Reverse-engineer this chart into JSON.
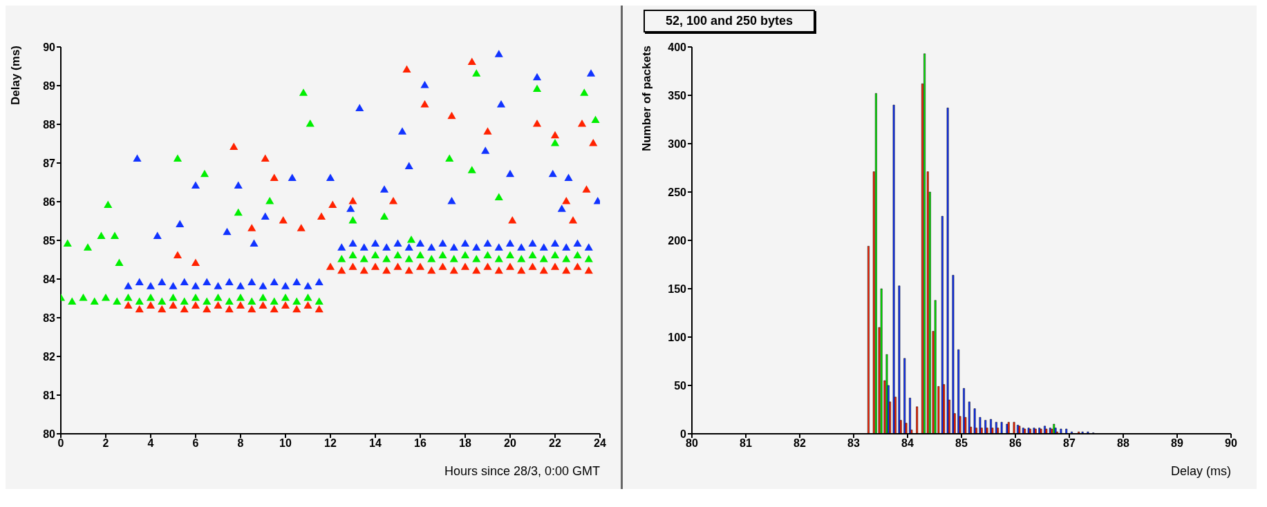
{
  "chart_data": [
    {
      "type": "scatter",
      "xlabel": "Hours since 28/3, 0:00 GMT",
      "ylabel": "Delay (ms)",
      "xlim": [
        0,
        24
      ],
      "ylim": [
        80,
        90
      ],
      "xticks": [
        0,
        2,
        4,
        6,
        8,
        10,
        12,
        14,
        16,
        18,
        20,
        22,
        24
      ],
      "yticks": [
        80,
        81,
        82,
        83,
        84,
        85,
        86,
        87,
        88,
        89,
        90
      ],
      "marker": "triangle",
      "series": [
        {
          "color": "#ff2200",
          "x": [
            3.0,
            3.5,
            4.0,
            4.5,
            5.0,
            5.5,
            6.0,
            6.5,
            7.0,
            7.5,
            8.0,
            8.5,
            9.0,
            9.5,
            10.0,
            10.5,
            11.0,
            11.5,
            12.0,
            12.5,
            13.0,
            13.5,
            14.0,
            14.5,
            15.0,
            15.5,
            16.0,
            16.5,
            17.0,
            17.5,
            18.0,
            18.5,
            19.0,
            19.5,
            20.0,
            20.5,
            21.0,
            21.5,
            22.0,
            22.5,
            23.0,
            23.5,
            7.7,
            9.1,
            9.5,
            9.9,
            10.7,
            11.6,
            12.1,
            15.4,
            18.3,
            16.2,
            17.4,
            19.0,
            21.2,
            22.0,
            23.2,
            23.7,
            13.0,
            14.8,
            20.1,
            22.5,
            23.4,
            22.8,
            6.0,
            8.5,
            5.2
          ],
          "values": [
            83.3,
            83.2,
            83.3,
            83.2,
            83.3,
            83.2,
            83.3,
            83.2,
            83.3,
            83.2,
            83.3,
            83.2,
            83.3,
            83.2,
            83.3,
            83.2,
            83.3,
            83.2,
            84.3,
            84.2,
            84.3,
            84.2,
            84.3,
            84.2,
            84.3,
            84.2,
            84.3,
            84.2,
            84.3,
            84.2,
            84.3,
            84.2,
            84.3,
            84.2,
            84.3,
            84.2,
            84.3,
            84.2,
            84.3,
            84.2,
            84.3,
            84.2,
            87.4,
            87.1,
            86.6,
            85.5,
            85.3,
            85.6,
            85.9,
            89.4,
            89.6,
            88.5,
            88.2,
            87.8,
            88.0,
            87.7,
            88.0,
            87.5,
            86.0,
            86.0,
            85.5,
            86.0,
            86.3,
            85.5,
            84.4,
            85.3,
            84.6
          ]
        },
        {
          "color": "#00ee00",
          "x": [
            0.0,
            0.5,
            1.0,
            1.5,
            2.0,
            2.5,
            3.0,
            3.5,
            4.0,
            4.5,
            5.0,
            5.5,
            6.0,
            6.5,
            7.0,
            7.5,
            8.0,
            8.5,
            9.0,
            9.5,
            10.0,
            10.5,
            11.0,
            11.5,
            12.5,
            13.0,
            13.5,
            14.0,
            14.5,
            15.0,
            15.5,
            16.0,
            16.5,
            17.0,
            17.5,
            18.0,
            18.5,
            19.0,
            19.5,
            20.0,
            20.5,
            21.0,
            21.5,
            22.0,
            22.5,
            23.0,
            23.5,
            10.8,
            11.1,
            5.2,
            6.4,
            2.1,
            0.3,
            1.8,
            2.4,
            9.3,
            7.9,
            15.6,
            18.5,
            21.2,
            23.3,
            23.8,
            17.3,
            18.3,
            22.0,
            19.5,
            14.4,
            2.6,
            1.2,
            13.0
          ],
          "values": [
            83.5,
            83.4,
            83.5,
            83.4,
            83.5,
            83.4,
            83.5,
            83.4,
            83.5,
            83.4,
            83.5,
            83.4,
            83.5,
            83.4,
            83.5,
            83.4,
            83.5,
            83.4,
            83.5,
            83.4,
            83.5,
            83.4,
            83.5,
            83.4,
            84.5,
            84.6,
            84.5,
            84.6,
            84.5,
            84.6,
            84.5,
            84.6,
            84.5,
            84.6,
            84.5,
            84.6,
            84.5,
            84.6,
            84.5,
            84.6,
            84.5,
            84.6,
            84.5,
            84.6,
            84.5,
            84.6,
            84.5,
            88.8,
            88.0,
            87.1,
            86.7,
            85.9,
            84.9,
            85.1,
            85.1,
            86.0,
            85.7,
            85.0,
            89.3,
            88.9,
            88.8,
            88.1,
            87.1,
            86.8,
            87.5,
            86.1,
            85.6,
            84.4,
            84.8,
            85.5
          ]
        },
        {
          "color": "#1133ff",
          "x": [
            3.0,
            3.5,
            4.0,
            4.5,
            5.0,
            5.5,
            6.0,
            6.5,
            7.0,
            7.5,
            8.0,
            8.5,
            9.0,
            9.5,
            10.0,
            10.5,
            11.0,
            11.5,
            12.5,
            13.0,
            13.5,
            14.0,
            14.5,
            15.0,
            15.5,
            16.0,
            16.5,
            17.0,
            17.5,
            18.0,
            18.5,
            19.0,
            19.5,
            20.0,
            20.5,
            21.0,
            21.5,
            22.0,
            22.5,
            23.0,
            23.5,
            3.4,
            6.0,
            7.9,
            10.3,
            12.0,
            13.3,
            15.2,
            15.5,
            16.2,
            19.5,
            19.6,
            21.2,
            23.6,
            18.9,
            20.0,
            21.9,
            22.6,
            12.9,
            14.4,
            17.4,
            5.3,
            7.4,
            9.1,
            4.3,
            8.6,
            23.9,
            22.3
          ],
          "values": [
            83.8,
            83.9,
            83.8,
            83.9,
            83.8,
            83.9,
            83.8,
            83.9,
            83.8,
            83.9,
            83.8,
            83.9,
            83.8,
            83.9,
            83.8,
            83.9,
            83.8,
            83.9,
            84.8,
            84.9,
            84.8,
            84.9,
            84.8,
            84.9,
            84.8,
            84.9,
            84.8,
            84.9,
            84.8,
            84.9,
            84.8,
            84.9,
            84.8,
            84.9,
            84.8,
            84.9,
            84.8,
            84.9,
            84.8,
            84.9,
            84.8,
            87.1,
            86.4,
            86.4,
            86.6,
            86.6,
            88.4,
            87.8,
            86.9,
            89.0,
            89.8,
            88.5,
            89.2,
            89.3,
            87.3,
            86.7,
            86.7,
            86.6,
            85.8,
            86.3,
            86.0,
            85.4,
            85.2,
            85.6,
            85.1,
            84.9,
            86.0,
            85.8
          ]
        }
      ]
    },
    {
      "type": "histogram",
      "title": "52, 100 and 250 bytes",
      "xlabel": "Delay (ms)",
      "ylabel": "Number of packets",
      "xlim": [
        80,
        90
      ],
      "ylim": [
        0,
        400
      ],
      "xticks": [
        80,
        81,
        82,
        83,
        84,
        85,
        86,
        87,
        88,
        89,
        90
      ],
      "yticks": [
        0,
        50,
        100,
        150,
        200,
        250,
        300,
        350,
        400
      ],
      "bins": [
        83.2,
        83.3,
        83.4,
        83.5,
        83.6,
        83.7,
        83.8,
        83.9,
        84.0,
        84.1,
        84.2,
        84.3,
        84.4,
        84.5,
        84.6,
        84.7,
        84.8,
        84.9,
        85.0,
        85.1,
        85.2,
        85.3,
        85.4,
        85.5,
        85.6,
        85.7,
        85.8,
        85.9,
        86.0,
        86.1,
        86.2,
        86.3,
        86.4,
        86.5,
        86.6,
        86.7,
        86.8,
        86.9,
        87.0,
        87.1,
        87.2,
        87.3,
        87.4,
        87.5
      ],
      "series": [
        {
          "color": "#00ee00",
          "values": [
            null,
            null,
            352,
            150,
            82,
            null,
            null,
            null,
            null,
            null,
            null,
            393,
            250,
            138,
            null,
            null,
            null,
            null,
            null,
            null,
            null,
            null,
            null,
            null,
            null,
            null,
            null,
            null,
            null,
            null,
            null,
            null,
            null,
            null,
            null,
            10,
            null,
            null,
            null,
            null,
            null,
            null,
            null
          ]
        },
        {
          "color": "#1133ff",
          "values": [
            null,
            null,
            null,
            null,
            50,
            340,
            153,
            78,
            37,
            null,
            null,
            null,
            null,
            null,
            225,
            337,
            164,
            87,
            47,
            33,
            26,
            17,
            14,
            15,
            12,
            12,
            10,
            null,
            9,
            6,
            6,
            6,
            6,
            8,
            6,
            6,
            5,
            5,
            2,
            null,
            2,
            2,
            1
          ]
        },
        {
          "color": "#ff2200",
          "values": [
            194,
            271,
            110,
            55,
            33,
            38,
            14,
            11,
            4,
            28,
            362,
            271,
            106,
            49,
            51,
            35,
            21,
            18,
            17,
            7,
            6,
            6,
            6,
            6,
            6,
            0,
            12,
            12,
            8,
            5,
            5,
            5,
            5,
            5,
            5,
            2,
            0,
            0,
            0,
            2,
            0,
            0,
            0
          ]
        }
      ]
    }
  ]
}
